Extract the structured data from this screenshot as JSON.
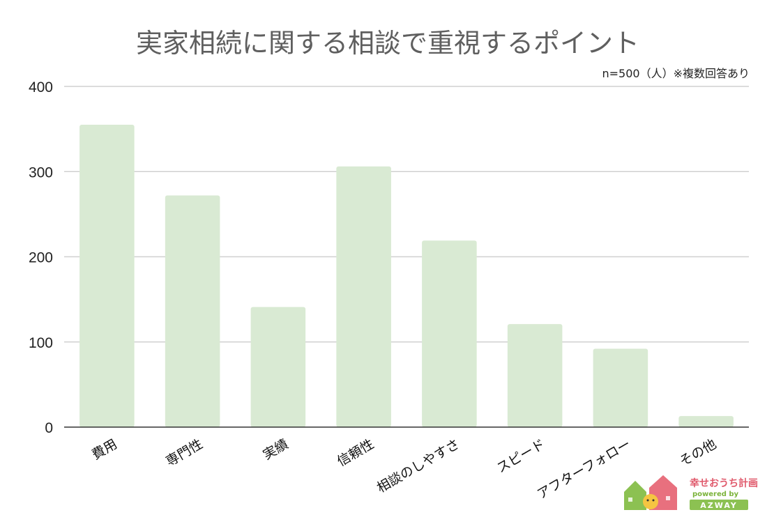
{
  "chart_data": {
    "type": "bar",
    "title": "実家相続に関する相談で重視するポイント",
    "note": "n=500（人）※複数回答あり",
    "categories": [
      "費用",
      "専門性",
      "実績",
      "信頼性",
      "相談のしやすさ",
      "スピード",
      "アフターフォロー",
      "その他"
    ],
    "values": [
      355,
      272,
      141,
      306,
      219,
      121,
      92,
      13
    ],
    "ylim": [
      0,
      400
    ],
    "yticks": [
      0,
      100,
      200,
      300,
      400
    ],
    "xlabel": "",
    "ylabel": "",
    "grid": true,
    "bar_color": "#d9ead3"
  },
  "logo": {
    "name": "幸せおうち計画",
    "powered": "powered by",
    "brand": "AZWAY",
    "colors": {
      "green": "#8cc152",
      "pink": "#e8707e",
      "yellow": "#f5c542"
    }
  }
}
